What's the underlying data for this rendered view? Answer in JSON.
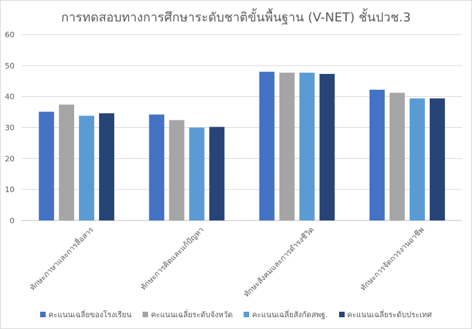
{
  "chart_data": {
    "type": "bar",
    "title": "การทดสอบทางการศึกษาระดับชาติขั้นพื้นฐาน (V-NET) ชั้นปวช.3",
    "categories": [
      "ทักษะภาษาและการสื่อสาร",
      "ทักษะการคิดและแก้ปัญหา",
      "ทักษะสังคมและการดำรงชีวิต",
      "ทักษะการจัดการงานอาชีพ"
    ],
    "series": [
      {
        "name": "คะแนนเฉลี่ยของโรงเรียน",
        "color": "#4472c4",
        "values": [
          35.1,
          34.2,
          48.0,
          42.2
        ]
      },
      {
        "name": "คะแนนเฉลี่ยระดับจังหวัด",
        "color": "#a5a5a5",
        "values": [
          37.4,
          32.4,
          47.7,
          41.2
        ]
      },
      {
        "name": "คะแนนเฉลี่ยสังกัดสพฐ.",
        "color": "#5b9bd5",
        "values": [
          33.8,
          30.0,
          47.7,
          39.4
        ]
      },
      {
        "name": "คะแนนเฉลี่ยระดับประเทศ",
        "color": "#264478",
        "values": [
          34.6,
          30.2,
          47.3,
          39.4
        ]
      }
    ],
    "ylim": [
      0,
      60
    ],
    "yticks": [
      0,
      10,
      20,
      30,
      40,
      50,
      60
    ],
    "xlabel": "",
    "ylabel": "",
    "grid": true,
    "legend_position": "bottom"
  }
}
